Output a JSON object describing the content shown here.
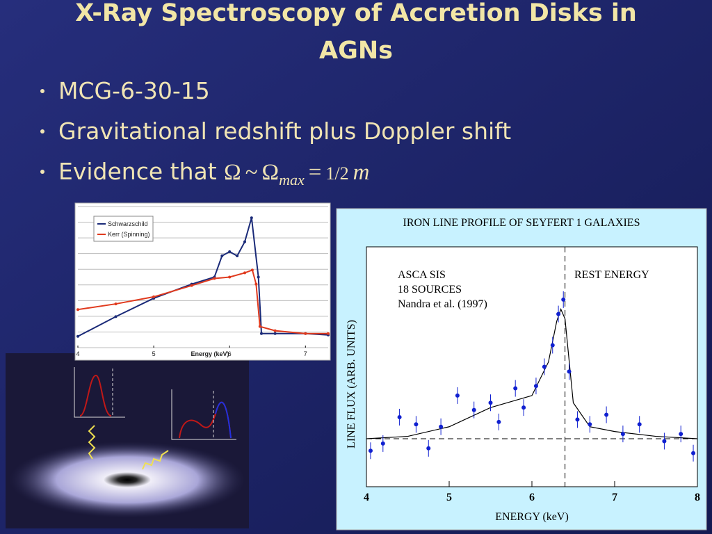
{
  "title": "X-Ray Spectroscopy of Accretion Disks in AGNs",
  "bullets": [
    "MCG-6-30-15",
    "Gravitational redshift plus Doppler shift",
    [
      "Evidence that ",
      "Ω",
      "~",
      "Ω",
      "max",
      "=",
      "1/2",
      "m"
    ]
  ],
  "chart_data": [
    {
      "type": "line",
      "xlabel": "Energy (keV)",
      "xticks": [
        4,
        5,
        6,
        7
      ],
      "xlim": [
        4,
        7.3
      ],
      "ylim": [
        0,
        10
      ],
      "grid": true,
      "legend": "upper left",
      "series": [
        {
          "name": "Schwarzschild",
          "color": "#1a2a78",
          "x": [
            4,
            4.5,
            5,
            5.5,
            5.8,
            5.9,
            6.0,
            6.1,
            6.2,
            6.29,
            6.38,
            6.42,
            6.6,
            7,
            7.3
          ],
          "values": [
            0.8,
            2.2,
            3.5,
            4.5,
            5.0,
            6.5,
            6.8,
            6.5,
            7.5,
            9.2,
            5.0,
            1.0,
            1.0,
            1.0,
            0.9
          ]
        },
        {
          "name": "Kerr (Spinning)",
          "color": "#e03a1e",
          "x": [
            4,
            4.5,
            5,
            5.5,
            5.8,
            6.0,
            6.2,
            6.3,
            6.35,
            6.4,
            6.6,
            7,
            7.3
          ],
          "values": [
            2.7,
            3.1,
            3.6,
            4.4,
            4.9,
            5.0,
            5.3,
            5.5,
            4.5,
            1.5,
            1.2,
            1.0,
            1.0
          ]
        }
      ]
    },
    {
      "type": "line",
      "title": "IRON LINE PROFILE OF SEYFERT 1 GALAXIES",
      "xlabel": "ENERGY (keV)",
      "ylabel": "LINE FLUX (ARB. UNITS)",
      "annotations": [
        "ASCA SIS",
        "18 SOURCES",
        "Nandra et al. (1997)",
        "REST ENERGY"
      ],
      "rest_energy": 6.4,
      "baseline": 2,
      "xticks": [
        4,
        5,
        6,
        7,
        8
      ],
      "xlim": [
        4,
        8
      ],
      "ylim": [
        0,
        10
      ],
      "series": [
        {
          "color": "#000000",
          "x": [
            4,
            4.5,
            5,
            5.5,
            5.8,
            6.0,
            6.2,
            6.3,
            6.35,
            6.4,
            6.5,
            6.7,
            7,
            7.5,
            8
          ],
          "values": [
            2.0,
            2.1,
            2.5,
            3.3,
            3.6,
            3.8,
            5.2,
            6.9,
            7.4,
            7.0,
            3.5,
            2.5,
            2.3,
            2.1,
            2.0
          ]
        },
        {
          "color": "#1020d0",
          "marker": "point",
          "x": [
            4.05,
            4.2,
            4.4,
            4.6,
            4.75,
            4.9,
            5.1,
            5.3,
            5.5,
            5.6,
            5.8,
            5.9,
            6.05,
            6.15,
            6.25,
            6.32,
            6.38,
            6.45,
            6.55,
            6.7,
            6.9,
            7.1,
            7.3,
            7.6,
            7.8,
            7.95
          ],
          "values": [
            1.5,
            1.8,
            2.9,
            2.6,
            1.6,
            2.5,
            3.8,
            3.2,
            3.5,
            2.7,
            4.1,
            3.3,
            4.2,
            5.0,
            5.9,
            7.2,
            7.8,
            4.8,
            2.8,
            2.6,
            3.0,
            2.2,
            2.6,
            1.9,
            2.2,
            1.4
          ]
        }
      ]
    }
  ]
}
